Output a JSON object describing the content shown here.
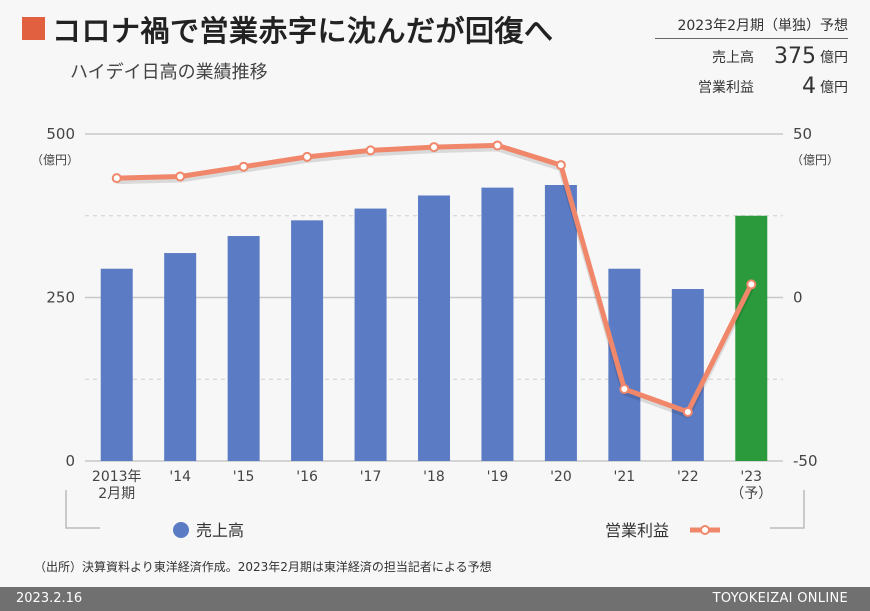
{
  "header": {
    "title": "コロナ禍で営業赤字に沈んだが回復へ",
    "subtitle": "ハイデイ日高の業績推移"
  },
  "forecast": {
    "heading": "2023年2月期（単独）予想",
    "sales_label": "売上高",
    "sales_value": "375",
    "sales_unit": "億円",
    "profit_label": "営業利益",
    "profit_value": "4",
    "profit_unit": "億円"
  },
  "chart_data": {
    "type": "bar+line",
    "categories": [
      "2013年\n2月期",
      "'14",
      "'15",
      "'16",
      "'17",
      "'18",
      "'19",
      "'20",
      "'21",
      "'22",
      "'23\n（予）"
    ],
    "left_axis": {
      "ticks": [
        "500",
        "250",
        "0"
      ],
      "values": [
        500,
        250,
        0
      ],
      "unit": "（億円）",
      "ylim": [
        0,
        500
      ]
    },
    "right_axis": {
      "ticks": [
        "50",
        "0",
        "-50"
      ],
      "values": [
        50,
        0,
        -50
      ],
      "unit": "（億円）",
      "ylim": [
        -50,
        50
      ]
    },
    "series": [
      {
        "name": "売上高",
        "kind": "bar",
        "axis": "left",
        "color": "#5b7bc4",
        "highlight_color": "#2a9a3c",
        "highlight_index": 10,
        "values": [
          294,
          318,
          344,
          368,
          386,
          406,
          418,
          422,
          294,
          263,
          375
        ]
      },
      {
        "name": "営業利益",
        "kind": "line",
        "axis": "right",
        "color": "#f0876a",
        "values": [
          36.5,
          37,
          40,
          43,
          45,
          46,
          46.5,
          40.5,
          -28,
          -35,
          4
        ]
      }
    ],
    "grid": true,
    "legend": "bottom"
  },
  "source": "（出所）決算資料より東洋経済作成。2023年2月期は東洋経済の担当記者による予想",
  "footer": {
    "date": "2023.2.16",
    "brand": "TOYOKEIZAI ONLINE"
  }
}
